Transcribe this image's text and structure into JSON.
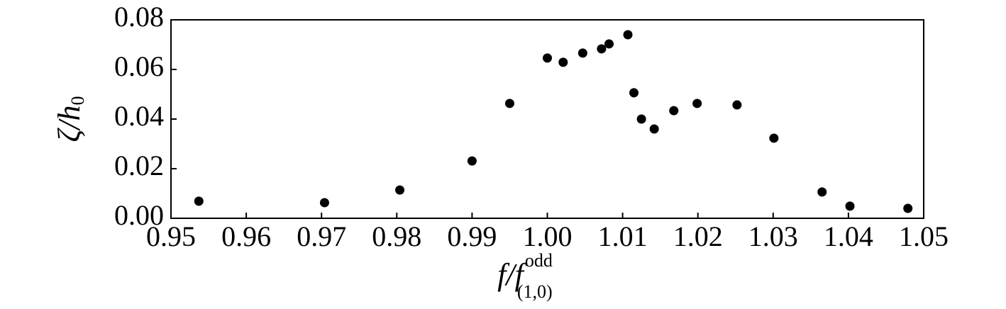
{
  "chart_data": {
    "type": "scatter",
    "color": "#000000",
    "x": [
      0.9537,
      0.9704,
      0.9804,
      0.99,
      0.995,
      1.0,
      1.0021,
      1.0047,
      1.0072,
      1.0082,
      1.0107,
      1.0115,
      1.0125,
      1.0142,
      1.0168,
      1.0199,
      1.0252,
      1.0301,
      1.0365,
      1.0402,
      1.0479
    ],
    "values": [
      0.0069,
      0.0063,
      0.0114,
      0.0231,
      0.0463,
      0.0646,
      0.0629,
      0.0666,
      0.0683,
      0.0703,
      0.074,
      0.0506,
      0.04,
      0.036,
      0.0434,
      0.0463,
      0.0457,
      0.0323,
      0.0106,
      0.0049,
      0.004
    ],
    "xlim": [
      0.95,
      1.05
    ],
    "xticks": [
      0.95,
      0.96,
      0.97,
      0.98,
      0.99,
      {
        "value": 1.0,
        "label": "1.00"
      },
      1.01,
      1.02,
      1.03,
      1.04,
      1.05
    ],
    "ylim": [
      0,
      0.08
    ],
    "yticks": [
      {
        "value": 0,
        "label": "0.00"
      },
      0.02,
      0.04,
      0.06,
      0.08
    ],
    "x_label": {
      "main": "f/f",
      "sup": "odd",
      "sub": "(1,0)"
    },
    "y_label": {
      "main": "ζ/h",
      "sub": "0"
    }
  }
}
